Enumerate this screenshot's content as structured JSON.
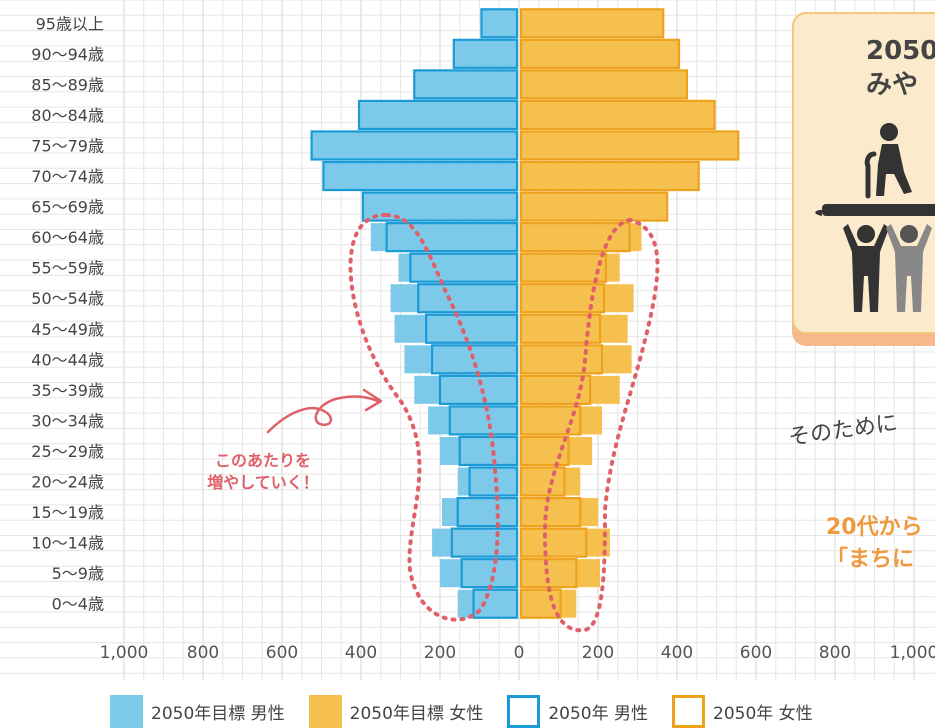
{
  "chart_data": {
    "type": "bar",
    "subtype": "population-pyramid",
    "categories": [
      "95歳以上",
      "90〜94歳",
      "85〜89歳",
      "80〜84歳",
      "75〜79歳",
      "70〜74歳",
      "65〜69歳",
      "60〜64歳",
      "55〜59歳",
      "50〜54歳",
      "45〜49歳",
      "40〜44歳",
      "35〜39歳",
      "30〜34歳",
      "25〜29歳",
      "20〜24歳",
      "15〜19歳",
      "10〜14歳",
      "5〜9歳",
      "0〜4歳"
    ],
    "x_ticks": [
      "1,000",
      "800",
      "600",
      "400",
      "200",
      "0",
      "200",
      "400",
      "600",
      "800",
      "1,000"
    ],
    "xlim": [
      -1000,
      1000
    ],
    "series": [
      {
        "name": "2050年目標 男性",
        "side": "left",
        "style": "fill",
        "color": "#7dc9ea",
        "values": [
          90,
          160,
          260,
          400,
          520,
          490,
          390,
          370,
          300,
          320,
          310,
          285,
          260,
          225,
          195,
          150,
          190,
          215,
          195,
          150
        ]
      },
      {
        "name": "2050年目標 女性",
        "side": "right",
        "style": "fill",
        "color": "#f5c04e",
        "values": [
          360,
          400,
          420,
          490,
          550,
          450,
          370,
          305,
          250,
          285,
          270,
          280,
          250,
          205,
          180,
          150,
          195,
          225,
          200,
          140
        ]
      },
      {
        "name": "2050年 男性",
        "side": "left",
        "style": "outline",
        "color": "#1a9ad6",
        "values": [
          90,
          160,
          260,
          400,
          520,
          490,
          390,
          330,
          270,
          250,
          230,
          215,
          195,
          170,
          145,
          120,
          150,
          165,
          140,
          110
        ]
      },
      {
        "name": "2050年 女性",
        "side": "right",
        "style": "outline",
        "color": "#eea21c",
        "values": [
          360,
          400,
          420,
          490,
          550,
          450,
          370,
          275,
          215,
          210,
          200,
          205,
          175,
          150,
          120,
          110,
          150,
          165,
          140,
          100
        ]
      }
    ],
    "grid": true
  },
  "legend": [
    {
      "label": "2050年目標 男性",
      "color": "#7dc9ea",
      "style": "fill"
    },
    {
      "label": "2050年目標 女性",
      "color": "#f5c04e",
      "style": "fill"
    },
    {
      "label": "2050年 男性",
      "color": "#1a9ad6",
      "style": "outline"
    },
    {
      "label": "2050年 女性",
      "color": "#eea21c",
      "style": "outline"
    }
  ],
  "annotation": {
    "line1": "このあたりを",
    "line2": "増やしていく！"
  },
  "card": {
    "title_line1": "2050",
    "title_line2": "みや"
  },
  "side_text": "そのために",
  "orange_text": {
    "line1": "20代から",
    "line2": "「まちに"
  }
}
